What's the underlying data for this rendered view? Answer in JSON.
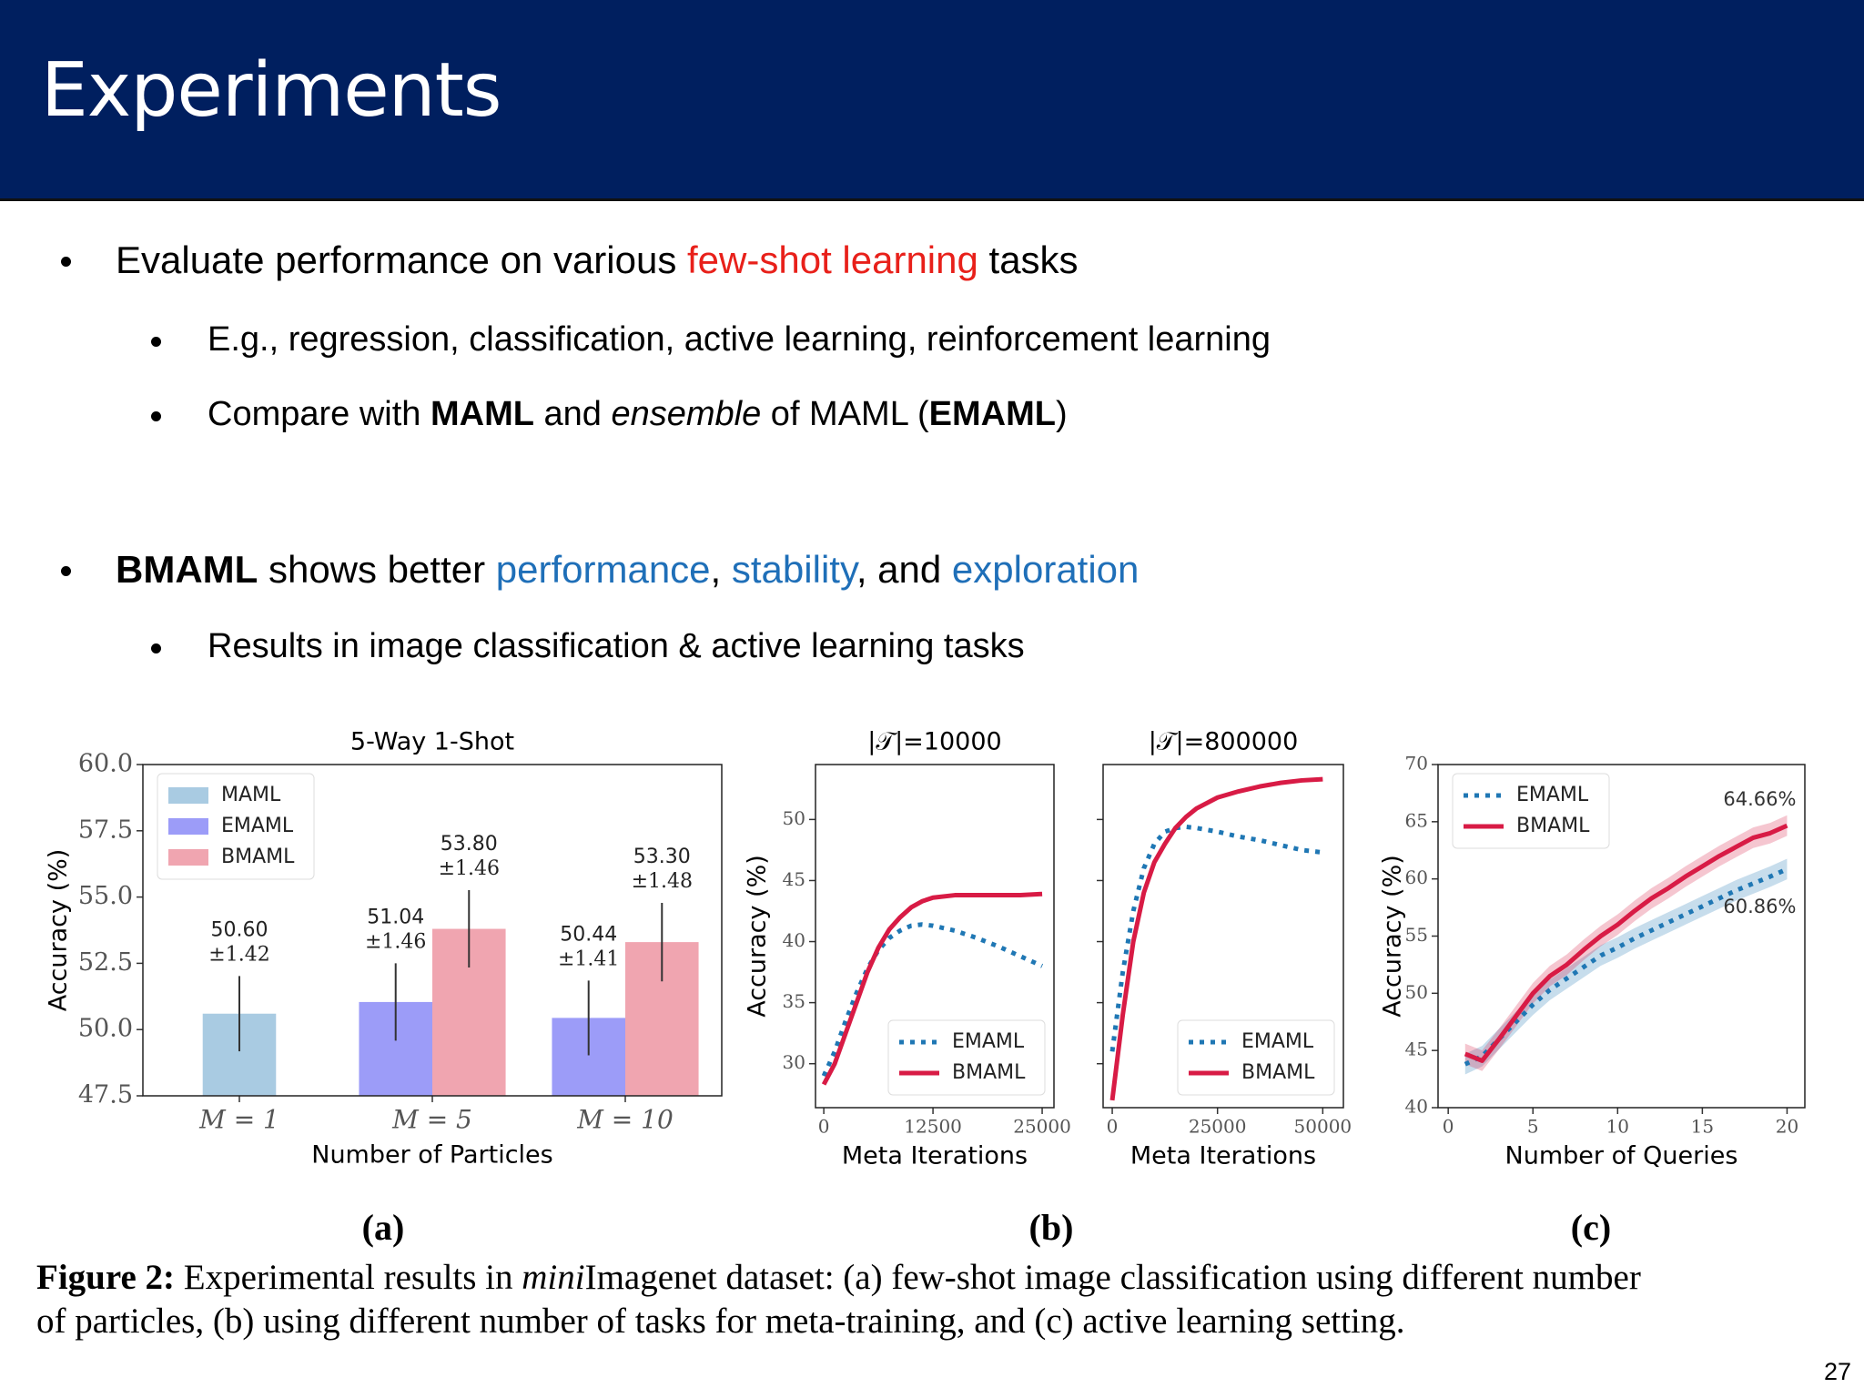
{
  "header": {
    "title": "Experiments"
  },
  "bullets": [
    {
      "parts": [
        "Evaluate performance on various ",
        "few-shot learning",
        " tasks"
      ],
      "sub": [
        {
          "parts": [
            "E.g., regression, classification, active learning, reinforcement learning"
          ]
        },
        {
          "parts": [
            "Compare with ",
            "MAML",
            " and ",
            "ensemble",
            " of MAML (",
            "EMAML",
            ")"
          ]
        }
      ]
    },
    {
      "parts": [
        "BMAML",
        " shows better ",
        "performance",
        ", ",
        "stability",
        ", and ",
        "exploration"
      ],
      "sub": [
        {
          "parts": [
            "Results in image classification & active learning tasks"
          ]
        }
      ]
    }
  ],
  "chart_data": [
    {
      "type": "bar",
      "title": "5-Way 1-Shot",
      "x_label": "Number of Particles",
      "y_label": "Accuracy (%)",
      "categories": [
        "M = 1",
        "M = 5",
        "M = 10"
      ],
      "series": [
        {
          "name": "MAML",
          "color": "#a9cbe2",
          "values": [
            50.6,
            null,
            null
          ],
          "errors": [
            1.42,
            null,
            null
          ],
          "value_labels": [
            "50.60",
            null,
            null
          ],
          "error_labels": [
            "±1.42",
            null,
            null
          ]
        },
        {
          "name": "EMAML",
          "color": "#9c9cf8",
          "values": [
            null,
            51.04,
            50.44
          ],
          "errors": [
            null,
            1.46,
            1.41
          ],
          "value_labels": [
            null,
            "51.04",
            "50.44"
          ],
          "error_labels": [
            null,
            "±1.46",
            "±1.41"
          ]
        },
        {
          "name": "BMAML",
          "color": "#f0a5b0",
          "values": [
            null,
            53.8,
            53.3
          ],
          "errors": [
            null,
            1.46,
            1.48
          ],
          "value_labels": [
            null,
            "53.80",
            "53.30"
          ],
          "error_labels": [
            null,
            "±1.46",
            "±1.48"
          ]
        }
      ],
      "ylim": [
        47.5,
        60.0
      ],
      "yticks": [
        47.5,
        {
          "value": 50,
          "label": "50.0"
        },
        52.5,
        {
          "value": 55,
          "label": "55.0"
        },
        57.5,
        {
          "value": 60,
          "label": "60.0"
        }
      ],
      "legend": "upper left",
      "grid": false
    },
    {
      "type": "line",
      "title": "|𝒯|=10000",
      "x_label": "Meta Iterations",
      "y_label": "Accuracy (%)",
      "x": [
        0,
        1250,
        2500,
        3750,
        5000,
        6250,
        7500,
        8750,
        10000,
        11250,
        12500,
        15000,
        17500,
        20000,
        22500,
        25000
      ],
      "series": [
        {
          "name": "EMAML",
          "color": "#1f77b4",
          "dash": "dotted",
          "values": [
            29,
            31,
            33.5,
            35.8,
            37.8,
            39.3,
            40.3,
            40.9,
            41.3,
            41.4,
            41.3,
            40.9,
            40.3,
            39.6,
            38.8,
            38.0
          ]
        },
        {
          "name": "BMAML",
          "color": "#d81b45",
          "dash": "solid",
          "values": [
            28.3,
            30,
            32.5,
            35,
            37.5,
            39.5,
            41,
            42,
            42.8,
            43.3,
            43.6,
            43.8,
            43.8,
            43.8,
            43.8,
            43.9
          ]
        }
      ],
      "xlim": [
        -950,
        26350
      ],
      "xticks": [
        0,
        12500,
        25000
      ],
      "ylim": [
        26.4,
        54.5
      ],
      "yticks": [
        30,
        35,
        40,
        45,
        50
      ],
      "ytick_labels": true,
      "legend": "lower right",
      "grid": false
    },
    {
      "type": "line",
      "title": "|𝒯|=800000",
      "x_label": "Meta Iterations",
      "x": [
        0,
        2500,
        5000,
        7500,
        10000,
        12500,
        15000,
        17500,
        20000,
        25000,
        30000,
        35000,
        40000,
        45000,
        50000
      ],
      "series": [
        {
          "name": "EMAML",
          "color": "#1f77b4",
          "dash": "dotted",
          "values": [
            31,
            37.5,
            42.5,
            46,
            48,
            49,
            49.3,
            49.4,
            49.3,
            49,
            48.6,
            48.3,
            47.9,
            47.5,
            47.3
          ]
        },
        {
          "name": "BMAML",
          "color": "#d81b45",
          "dash": "solid",
          "values": [
            27,
            34,
            40,
            44,
            46.5,
            48,
            49.3,
            50.2,
            50.9,
            51.8,
            52.3,
            52.7,
            53,
            53.2,
            53.3
          ]
        }
      ],
      "xlim": [
        -2170,
        54900
      ],
      "xticks": [
        0,
        25000,
        50000
      ],
      "ylim": [
        26.4,
        54.5
      ],
      "yticks": [
        30,
        35,
        40,
        45,
        50
      ],
      "ytick_labels": false,
      "legend": "lower right",
      "grid": false
    },
    {
      "type": "line",
      "x_label": "Number of Queries",
      "y_label": "Accuracy (%)",
      "x": [
        1,
        2,
        3,
        4,
        5,
        6,
        7,
        8,
        9,
        10,
        11,
        12,
        13,
        14,
        15,
        16,
        17,
        18,
        19,
        20
      ],
      "series": [
        {
          "name": "EMAML",
          "color": "#1f77b4",
          "dash": "dotted",
          "band": 0.9,
          "values": [
            43.8,
            44.5,
            46,
            47.5,
            49,
            50.3,
            51.3,
            52.3,
            53.3,
            54,
            54.8,
            55.5,
            56.2,
            56.9,
            57.6,
            58.3,
            59,
            59.6,
            60.2,
            60.86
          ],
          "value_labels": [
            null,
            null,
            null,
            null,
            null,
            null,
            null,
            null,
            null,
            null,
            null,
            null,
            null,
            null,
            null,
            null,
            null,
            null,
            null,
            "60.86%"
          ]
        },
        {
          "name": "BMAML",
          "color": "#d81b45",
          "dash": "solid",
          "band": 0.9,
          "values": [
            44.7,
            44.1,
            46,
            48,
            50,
            51.5,
            52.5,
            53.8,
            55,
            56,
            57.2,
            58.3,
            59.2,
            60.2,
            61.1,
            62,
            62.8,
            63.6,
            64,
            64.66
          ],
          "value_labels": [
            null,
            null,
            null,
            null,
            null,
            null,
            null,
            null,
            null,
            null,
            null,
            null,
            null,
            null,
            null,
            null,
            null,
            null,
            null,
            "64.66%"
          ]
        }
      ],
      "xlim": [
        -0.6,
        21.05
      ],
      "xticks": [
        0,
        5,
        10,
        15,
        20
      ],
      "ylim": [
        40,
        70
      ],
      "yticks": [
        40,
        45,
        50,
        55,
        60,
        65,
        70
      ],
      "ytick_labels": true,
      "legend": "upper left",
      "grid": false
    }
  ],
  "panel_labels": [
    "(a)",
    "(b)",
    "(c)"
  ],
  "caption": {
    "label": "Figure 2:",
    "parts": [
      " Experimental results in ",
      "mini",
      "Imagenet dataset: (a) few-shot image classification using different number",
      "of particles, (b) using different number of tasks for meta-training, and (c) active learning setting."
    ]
  },
  "page_number": "27"
}
